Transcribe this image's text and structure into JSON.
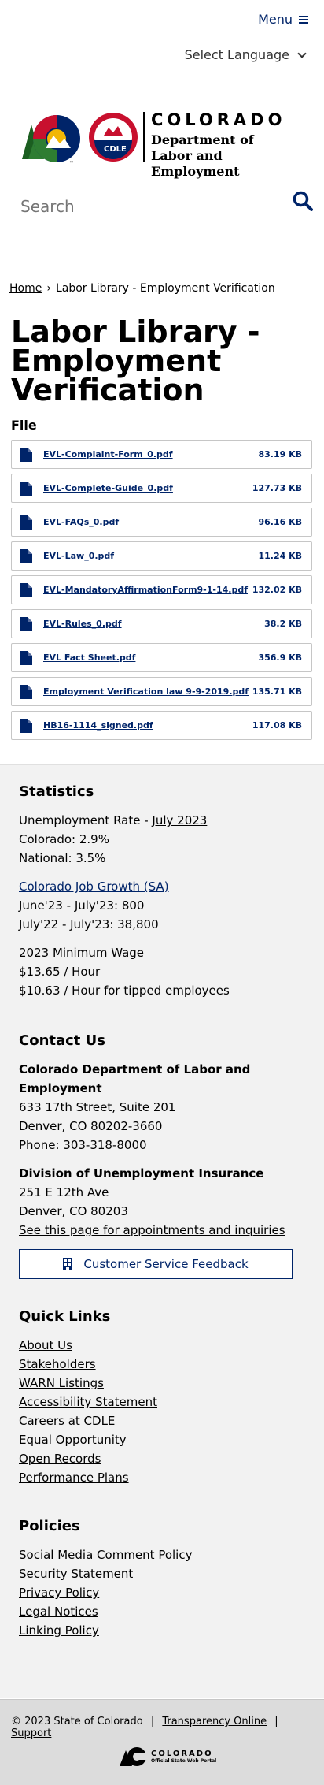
{
  "header": {
    "menu_label": "Menu",
    "language_label": "Select Language",
    "logo_tm": "™",
    "logo_badge": "CDLE",
    "state_name": "COLORADO",
    "dept_line1": "Department of",
    "dept_line2": "Labor and Employment",
    "search_placeholder": "Search"
  },
  "breadcrumb": {
    "home": "Home",
    "separator": "›",
    "current": "Labor Library - Employment Verification"
  },
  "page": {
    "title": "Labor Library - Employment Verification",
    "file_heading": "File"
  },
  "files": [
    {
      "name": "EVL-Complaint-Form_0.pdf",
      "size": "83.19 KB"
    },
    {
      "name": "EVL-Complete-Guide_0.pdf",
      "size": "127.73 KB"
    },
    {
      "name": "EVL-FAQs_0.pdf",
      "size": "96.16 KB"
    },
    {
      "name": "EVL-Law_0.pdf",
      "size": "11.24 KB"
    },
    {
      "name": "EVL-MandatoryAffirmationForm9-1-14.pdf",
      "size": "132.02 KB"
    },
    {
      "name": "EVL-Rules_0.pdf",
      "size": "38.2 KB"
    },
    {
      "name": "EVL Fact Sheet.pdf",
      "size": "356.9 KB"
    },
    {
      "name": "Employment Verification law 9-9-2019.pdf",
      "size": "135.71 KB"
    },
    {
      "name": "HB16-1114_signed.pdf",
      "size": "117.08 KB"
    }
  ],
  "statistics": {
    "heading": "Statistics",
    "unemployment_label": "Unemployment Rate - ",
    "unemployment_link": "July 2023",
    "colorado": "Colorado: 2.9%",
    "national": "National: 3.5%",
    "job_growth_link": "Colorado Job Growth (SA)",
    "job_growth_1": "June'23 - July'23: 800",
    "job_growth_2": "July'22 - July'23: 38,800",
    "min_wage_heading": "2023 Minimum Wage",
    "min_wage_1": "$13.65 / Hour",
    "min_wage_2": "$10.63 / Hour for tipped employees"
  },
  "contact": {
    "heading": "Contact Us",
    "org_name": "Colorado Department of Labor and Employment",
    "address1": "633 17th Street, Suite 201",
    "address2": "Denver, CO  80202-3660",
    "phone": "Phone: 303-318-8000",
    "div_name": "Division of Unemployment Insurance",
    "div_address1": "251 E 12th Ave",
    "div_address2": "Denver, CO  80203",
    "div_link": "See this page for appointments and inquiries",
    "feedback_button": "Customer Service Feedback"
  },
  "quick_links": {
    "heading": "Quick Links",
    "items": [
      "About Us",
      "Stakeholders",
      "WARN Listings",
      "Accessibility Statement",
      "Careers at CDLE",
      "Equal Opportunity",
      "Open Records",
      "Performance Plans"
    ]
  },
  "policies": {
    "heading": "Policies",
    "items": [
      "Social Media Comment Policy",
      "Security Statement",
      "Privacy Policy",
      "Legal Notices",
      "Linking Policy"
    ]
  },
  "bottom": {
    "copyright": "© 2023 State of Colorado",
    "sep": "|",
    "transparency": "Transparency Online",
    "support": "Support",
    "portal_name": "COLORADO",
    "portal_sub": "Official State Web Portal"
  },
  "colors": {
    "brand_blue": "#002469",
    "footer_gray": "#f2f2f2",
    "bottom_gray": "#dcdcdc"
  }
}
